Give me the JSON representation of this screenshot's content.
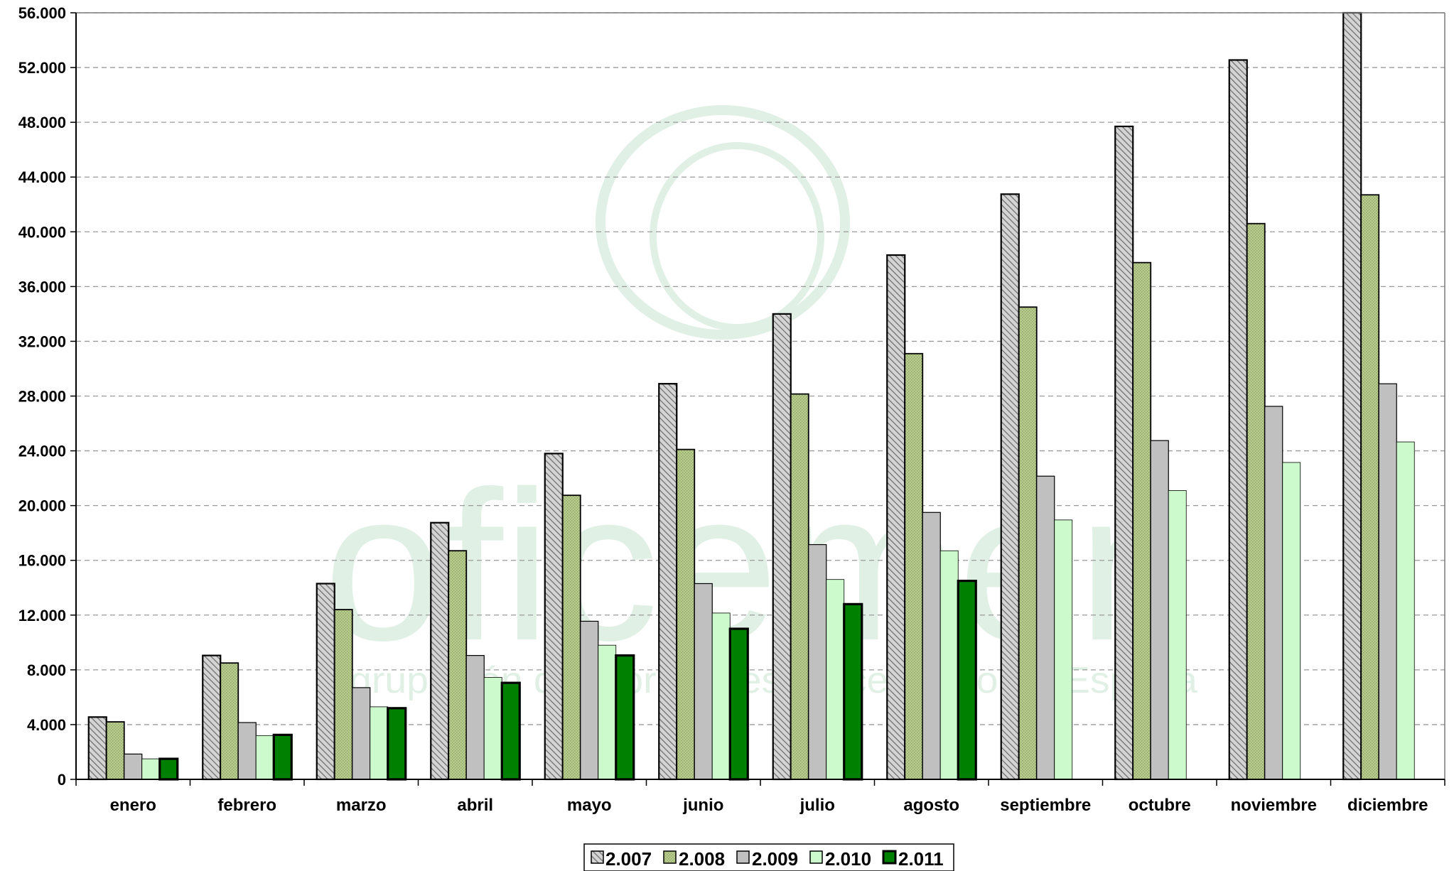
{
  "watermark": {
    "brand": "oficemen",
    "tagline": "Agrupación de fabricantes de cemento de España"
  },
  "colors": {
    "2.007": "#bdbdbd",
    "2.008": "#b5c98a",
    "2.009": "#c0c0c0",
    "2.010": "#ccfacc",
    "2.011": "#008000",
    "grid": "#9a9a9a",
    "watermark": "#d6ebdd"
  },
  "chart_data": {
    "type": "bar",
    "title": "",
    "xlabel": "",
    "ylabel": "",
    "ylim": [
      0,
      56000
    ],
    "y_tick_step": 4000,
    "y_ticks": [
      "0",
      "4.000",
      "8.000",
      "12.000",
      "16.000",
      "20.000",
      "24.000",
      "28.000",
      "32.000",
      "36.000",
      "40.000",
      "44.000",
      "48.000",
      "52.000",
      "56.000"
    ],
    "grid": "horizontal-dashed",
    "legend": "bottom-center",
    "categories": [
      "enero",
      "febrero",
      "marzo",
      "abril",
      "mayo",
      "junio",
      "julio",
      "agosto",
      "septiembre",
      "octubre",
      "noviembre",
      "diciembre"
    ],
    "series": [
      {
        "name": "2.007",
        "values": [
          4550,
          9050,
          14300,
          18750,
          23800,
          28900,
          34000,
          38300,
          42750,
          47700,
          52550,
          56000
        ]
      },
      {
        "name": "2.008",
        "values": [
          4200,
          8500,
          12400,
          16700,
          20750,
          24100,
          28150,
          31100,
          34500,
          37750,
          40600,
          42700
        ]
      },
      {
        "name": "2.009",
        "values": [
          1850,
          4150,
          6700,
          9050,
          11550,
          14300,
          17150,
          19500,
          22150,
          24750,
          27250,
          28900
        ]
      },
      {
        "name": "2.010",
        "values": [
          1500,
          3200,
          5300,
          7450,
          9800,
          12150,
          14600,
          16700,
          18950,
          21100,
          23150,
          24650
        ]
      },
      {
        "name": "2.011",
        "values": [
          1500,
          3250,
          5200,
          7050,
          9050,
          11000,
          12800,
          14500,
          null,
          null,
          null,
          null
        ]
      }
    ]
  }
}
